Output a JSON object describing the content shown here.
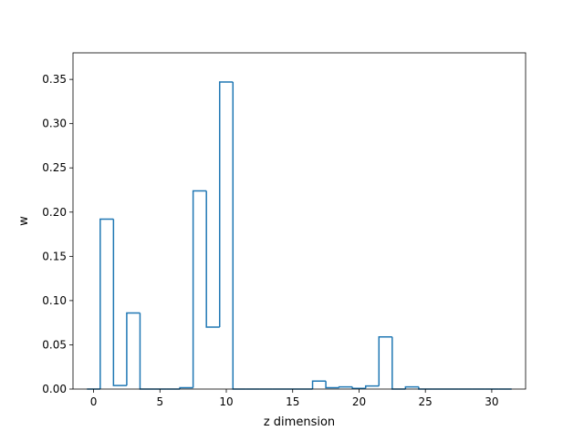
{
  "chart_data": {
    "type": "bar",
    "style": "step-histogram",
    "title": "",
    "xlabel": "z dimension",
    "ylabel": "w",
    "x": [
      0,
      1,
      2,
      3,
      4,
      5,
      6,
      7,
      8,
      9,
      10,
      11,
      12,
      13,
      14,
      15,
      16,
      17,
      18,
      19,
      20,
      21,
      22,
      23,
      24,
      25,
      26,
      27,
      28,
      29,
      30,
      31
    ],
    "values": [
      0.0,
      0.192,
      0.004,
      0.086,
      0.0,
      0.0,
      0.0,
      0.0015,
      0.224,
      0.07,
      0.347,
      0.0,
      0.0,
      0.0,
      0.0,
      0.0,
      0.0,
      0.009,
      0.0015,
      0.0025,
      0.0008,
      0.0035,
      0.059,
      0.0,
      0.0025,
      0.0,
      0.0,
      0.0,
      0.0,
      0.0,
      0.0,
      0.0
    ],
    "xlim": [
      -1.55,
      32.55
    ],
    "ylim": [
      0.0,
      0.38
    ],
    "xticks": [
      0,
      5,
      10,
      15,
      20,
      25,
      30
    ],
    "xtick_labels": [
      "0",
      "5",
      "10",
      "15",
      "20",
      "25",
      "30"
    ],
    "yticks": [
      0.0,
      0.05,
      0.1,
      0.15,
      0.2,
      0.25,
      0.3,
      0.35
    ],
    "ytick_labels": [
      "0.00",
      "0.05",
      "0.10",
      "0.15",
      "0.20",
      "0.25",
      "0.30",
      "0.35"
    ],
    "grid": false,
    "legend": "none",
    "colors": {
      "series": "#1f77b4",
      "axes": "#000000"
    }
  }
}
